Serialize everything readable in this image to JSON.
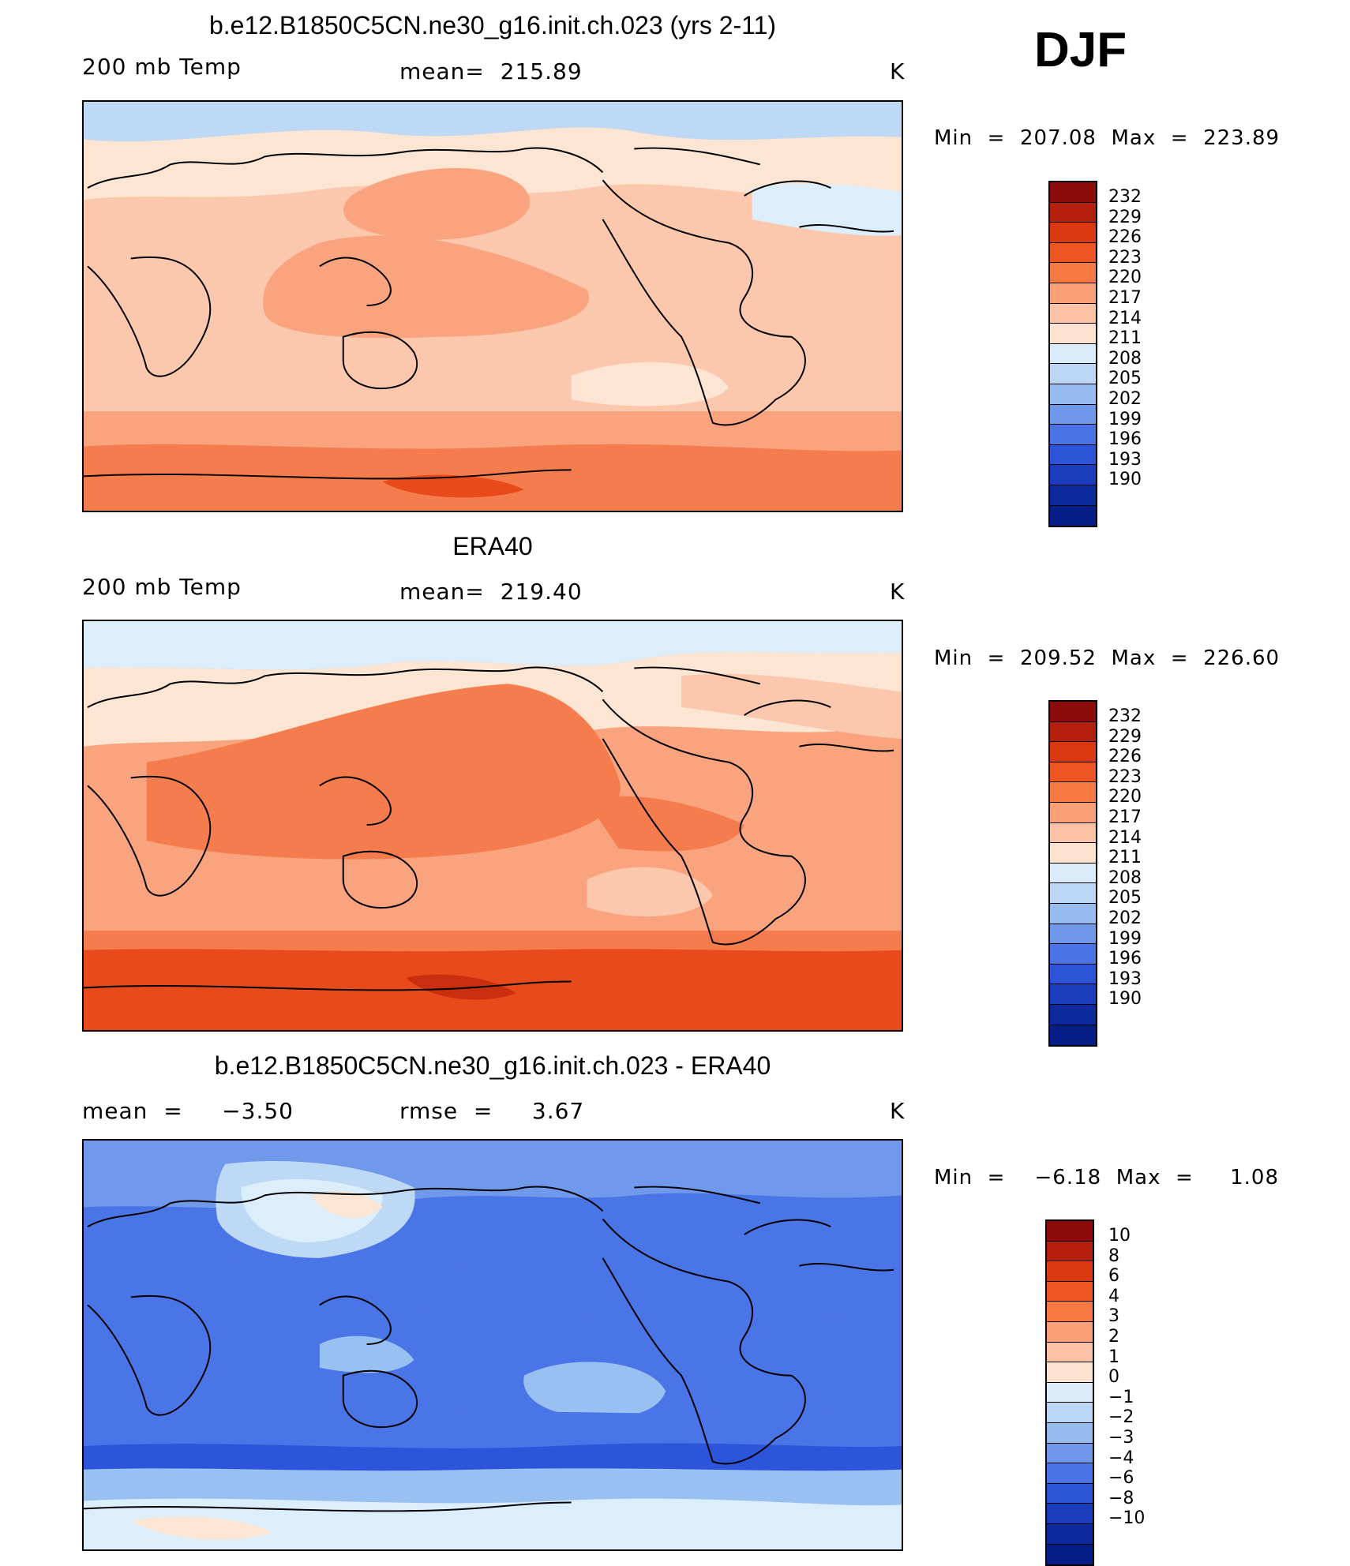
{
  "season": "DJF",
  "palette": {
    "warm": [
      "#f0f7fd",
      "#fde5d3",
      "#fcc8ad",
      "#f9a47f",
      "#f57c4d",
      "#e84a1b",
      "#c92e0f",
      "#8b0c0a"
    ],
    "cool": [
      "#dceefb",
      "#bdd9f6",
      "#98c0f1",
      "#7099ec",
      "#4a75e6",
      "#2d55dc",
      "#1a3dc8",
      "#0b2a9e",
      "#041d87"
    ],
    "ocean_lines": "#000000"
  },
  "panels": [
    {
      "title": "b.e12.B1850C5CN.ne30_g16.init.ch.023 (yrs 2-11)",
      "left_label": "200 mb Temp",
      "center_label": "mean=  215.89",
      "right_label": "K",
      "minmax": "Min  =  207.08  Max  =  223.89",
      "scheme": "model"
    },
    {
      "title": "ERA40",
      "left_label": "200 mb Temp",
      "center_label": "mean=  219.40",
      "right_label": "K",
      "minmax": "Min  =  209.52  Max  =  226.60",
      "scheme": "obs"
    },
    {
      "title": "b.e12.B1850C5CN.ne30_g16.init.ch.023 - ERA40",
      "left_label": "mean  =     −3.50",
      "center_label": "rmse  =     3.67",
      "right_label": "K",
      "minmax": "Min  =    −6.18  Max  =     1.08",
      "scheme": "diff"
    }
  ],
  "colorbars": [
    {
      "labels": [
        "232",
        "229",
        "226",
        "223",
        "220",
        "217",
        "214",
        "211",
        "208",
        "205",
        "202",
        "199",
        "196",
        "193",
        "190"
      ],
      "colors": [
        "#8b0c0a",
        "#b5200e",
        "#d93810",
        "#ec5522",
        "#f77a45",
        "#f9a077",
        "#fcc2a5",
        "#fde3cf",
        "#dcebfa",
        "#bcd6f5",
        "#97bcef",
        "#6f98eb",
        "#4a74e5",
        "#2b55d6",
        "#1a3dbd",
        "#0c2a9c",
        "#041d87"
      ]
    },
    {
      "labels": [
        "232",
        "229",
        "226",
        "223",
        "220",
        "217",
        "214",
        "211",
        "208",
        "205",
        "202",
        "199",
        "196",
        "193",
        "190"
      ],
      "colors": [
        "#8b0c0a",
        "#b5200e",
        "#d93810",
        "#ec5522",
        "#f77a45",
        "#f9a077",
        "#fcc2a5",
        "#fde3cf",
        "#dcebfa",
        "#bcd6f5",
        "#97bcef",
        "#6f98eb",
        "#4a74e5",
        "#2b55d6",
        "#1a3dbd",
        "#0c2a9c",
        "#041d87"
      ]
    },
    {
      "labels": [
        "10",
        "8",
        "6",
        "4",
        "3",
        "2",
        "1",
        "0",
        "−1",
        "−2",
        "−3",
        "−4",
        "−6",
        "−8",
        "−10"
      ],
      "colors": [
        "#8b0c0a",
        "#b5200e",
        "#d93810",
        "#ec5522",
        "#f77a45",
        "#f9a077",
        "#fcc2a5",
        "#fde3cf",
        "#dcebfa",
        "#bcd6f5",
        "#97bcef",
        "#6f98eb",
        "#4a74e5",
        "#2b55d6",
        "#1a3dbd",
        "#0c2a9c",
        "#041d87"
      ]
    }
  ]
}
